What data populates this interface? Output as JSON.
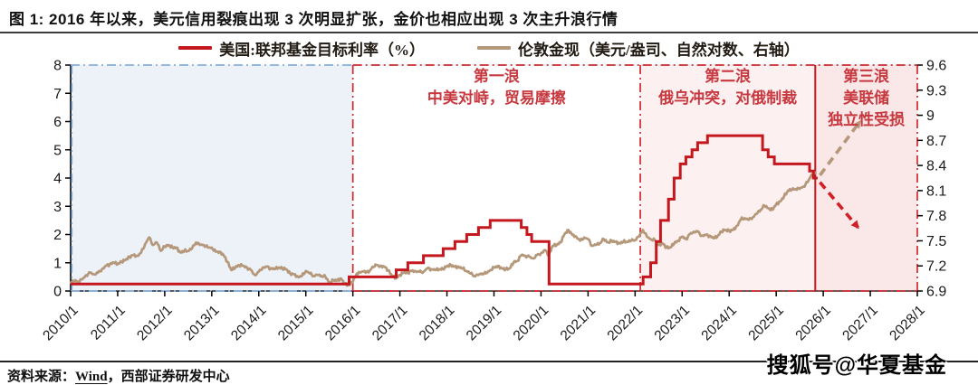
{
  "title": "图 1: 2016 年以来，美元信用裂痕出现 3 次明显扩张，金价也相应出现 3 次主升浪行情",
  "footer": {
    "source_prefix": "资料来源：",
    "source_link": "Wind",
    "source_suffix": "，西部证券研发中心"
  },
  "watermark": "搜狐号@华夏基金",
  "chart_data": {
    "type": "line",
    "x": {
      "min": 2010,
      "max": 2028,
      "tick_labels": [
        "2010/1",
        "2011/1",
        "2012/1",
        "2013/1",
        "2014/1",
        "2015/1",
        "2016/1",
        "2017/1",
        "2018/1",
        "2019/1",
        "2020/1",
        "2021/1",
        "2022/1",
        "2023/1",
        "2024/1",
        "2025/1",
        "2026/1",
        "2027/1",
        "2028/1"
      ]
    },
    "y_left": {
      "min": 0,
      "max": 8,
      "ticks": [
        8,
        7,
        6,
        5,
        4,
        3,
        2,
        1,
        0
      ]
    },
    "y_right": {
      "min": 6.9,
      "max": 9.6,
      "ticks": [
        "9.6",
        "9.3",
        "9",
        "8.7",
        "8.4",
        "8.1",
        "7.8",
        "7.5",
        "7.2",
        "6.9"
      ]
    },
    "grid": false,
    "legend_position": "top-center",
    "series": [
      {
        "name": "美国:联邦基金目标利率（%）",
        "type": "step",
        "axis": "left",
        "color": "#c4171e",
        "points": [
          [
            2010.0,
            0.25
          ],
          [
            2015.92,
            0.5
          ],
          [
            2016.92,
            0.75
          ],
          [
            2017.17,
            1.0
          ],
          [
            2017.5,
            1.25
          ],
          [
            2017.92,
            1.5
          ],
          [
            2018.17,
            1.75
          ],
          [
            2018.42,
            2.0
          ],
          [
            2018.67,
            2.25
          ],
          [
            2018.92,
            2.5
          ],
          [
            2019.58,
            2.25
          ],
          [
            2019.7,
            2.0
          ],
          [
            2019.8,
            1.75
          ],
          [
            2020.17,
            0.25
          ],
          [
            2022.17,
            0.5
          ],
          [
            2022.33,
            1.0
          ],
          [
            2022.45,
            1.75
          ],
          [
            2022.54,
            2.5
          ],
          [
            2022.71,
            3.25
          ],
          [
            2022.83,
            4.0
          ],
          [
            2022.96,
            4.5
          ],
          [
            2023.08,
            4.75
          ],
          [
            2023.21,
            5.0
          ],
          [
            2023.33,
            5.25
          ],
          [
            2023.54,
            5.5
          ],
          [
            2024.71,
            5.0
          ],
          [
            2024.83,
            4.75
          ],
          [
            2024.96,
            4.5
          ],
          [
            2025.71,
            4.25
          ],
          [
            2025.79,
            4.0
          ]
        ],
        "end_x": 2025.88
      },
      {
        "name": "伦敦金现（美元/盎司、自然对数、右轴）",
        "type": "line",
        "axis": "right",
        "color": "#b5987a",
        "start_year": 2010,
        "step_months": 1,
        "ln_values": [
          7.0,
          7.02,
          7.01,
          7.04,
          7.09,
          7.12,
          7.1,
          7.12,
          7.16,
          7.2,
          7.22,
          7.24,
          7.22,
          7.25,
          7.27,
          7.31,
          7.33,
          7.32,
          7.36,
          7.46,
          7.54,
          7.45,
          7.48,
          7.38,
          7.43,
          7.45,
          7.42,
          7.42,
          7.36,
          7.38,
          7.38,
          7.41,
          7.48,
          7.45,
          7.45,
          7.42,
          7.42,
          7.37,
          7.37,
          7.33,
          7.25,
          7.15,
          7.18,
          7.21,
          7.2,
          7.18,
          7.15,
          7.09,
          7.13,
          7.18,
          7.19,
          7.17,
          7.16,
          7.18,
          7.17,
          7.16,
          7.11,
          7.1,
          7.07,
          7.08,
          7.14,
          7.11,
          7.08,
          7.09,
          7.08,
          7.07,
          7.0,
          7.03,
          7.03,
          7.05,
          6.98,
          6.97,
          7.01,
          7.11,
          7.12,
          7.14,
          7.12,
          7.19,
          7.21,
          7.2,
          7.19,
          7.15,
          7.08,
          7.05,
          7.09,
          7.12,
          7.12,
          7.14,
          7.14,
          7.13,
          7.13,
          7.17,
          7.16,
          7.15,
          7.16,
          7.16,
          7.2,
          7.21,
          7.19,
          7.19,
          7.17,
          7.14,
          7.11,
          7.08,
          7.09,
          7.11,
          7.11,
          7.15,
          7.18,
          7.2,
          7.17,
          7.16,
          7.17,
          7.24,
          7.26,
          7.33,
          7.32,
          7.31,
          7.29,
          7.33,
          7.35,
          7.39,
          7.33,
          7.44,
          7.45,
          7.48,
          7.58,
          7.63,
          7.57,
          7.55,
          7.5,
          7.54,
          7.52,
          7.44,
          7.45,
          7.47,
          7.52,
          7.48,
          7.5,
          7.49,
          7.47,
          7.49,
          7.49,
          7.5,
          7.51,
          7.55,
          7.63,
          7.55,
          7.52,
          7.51,
          7.45,
          7.47,
          7.42,
          7.42,
          7.47,
          7.5,
          7.55,
          7.52,
          7.58,
          7.61,
          7.61,
          7.56,
          7.57,
          7.56,
          7.53,
          7.55,
          7.61,
          7.63,
          7.62,
          7.63,
          7.68,
          7.76,
          7.77,
          7.75,
          7.78,
          7.82,
          7.87,
          7.92,
          7.89,
          7.87,
          7.94,
          7.97,
          8.03,
          8.1,
          8.11,
          8.12,
          8.12,
          8.15,
          8.2,
          8.29,
          8.31
        ]
      }
    ],
    "regions": [
      {
        "name": "pre-2016",
        "x": [
          2010,
          2016.0
        ],
        "fill": "#edf2f8",
        "border_color": "#88afd9",
        "border_style": "dashdot",
        "label": "",
        "lines": []
      },
      {
        "name": "wave1",
        "x": [
          2016.0,
          2022.11
        ],
        "fill": "#ffffff",
        "border_color": "#cd2a30",
        "border_style": "dashdot",
        "left_border": "dashdot",
        "lines": [
          "第一浪",
          "中美对峙，贸易摩擦"
        ]
      },
      {
        "name": "wave2",
        "x": [
          2022.11,
          2025.83
        ],
        "fill": "#fdf0f0",
        "border_color": "#cd2a30",
        "border_style": "dashdot",
        "left_border": "dashdot",
        "lines": [
          "第二浪",
          "俄乌冲突，对俄制裁"
        ]
      },
      {
        "name": "wave3",
        "x": [
          2025.83,
          2028.0
        ],
        "fill": "#fae7e7",
        "border_color": "#cd2a30",
        "border_style": "dashdot",
        "left_border": "solid",
        "lines": [
          "第三浪",
          "美联储",
          "独立性受损"
        ]
      }
    ],
    "annotation_color": "#c7383f",
    "projection_arrows": [
      {
        "name": "gold-projection-arrow",
        "color": "#b5987a",
        "from": [
          2025.93,
          4.1
        ],
        "to": [
          2026.78,
          6.0
        ]
      },
      {
        "name": "rate-projection-arrow",
        "color": "#d01f26",
        "from": [
          2025.93,
          3.85
        ],
        "to": [
          2026.74,
          2.25
        ]
      }
    ]
  }
}
